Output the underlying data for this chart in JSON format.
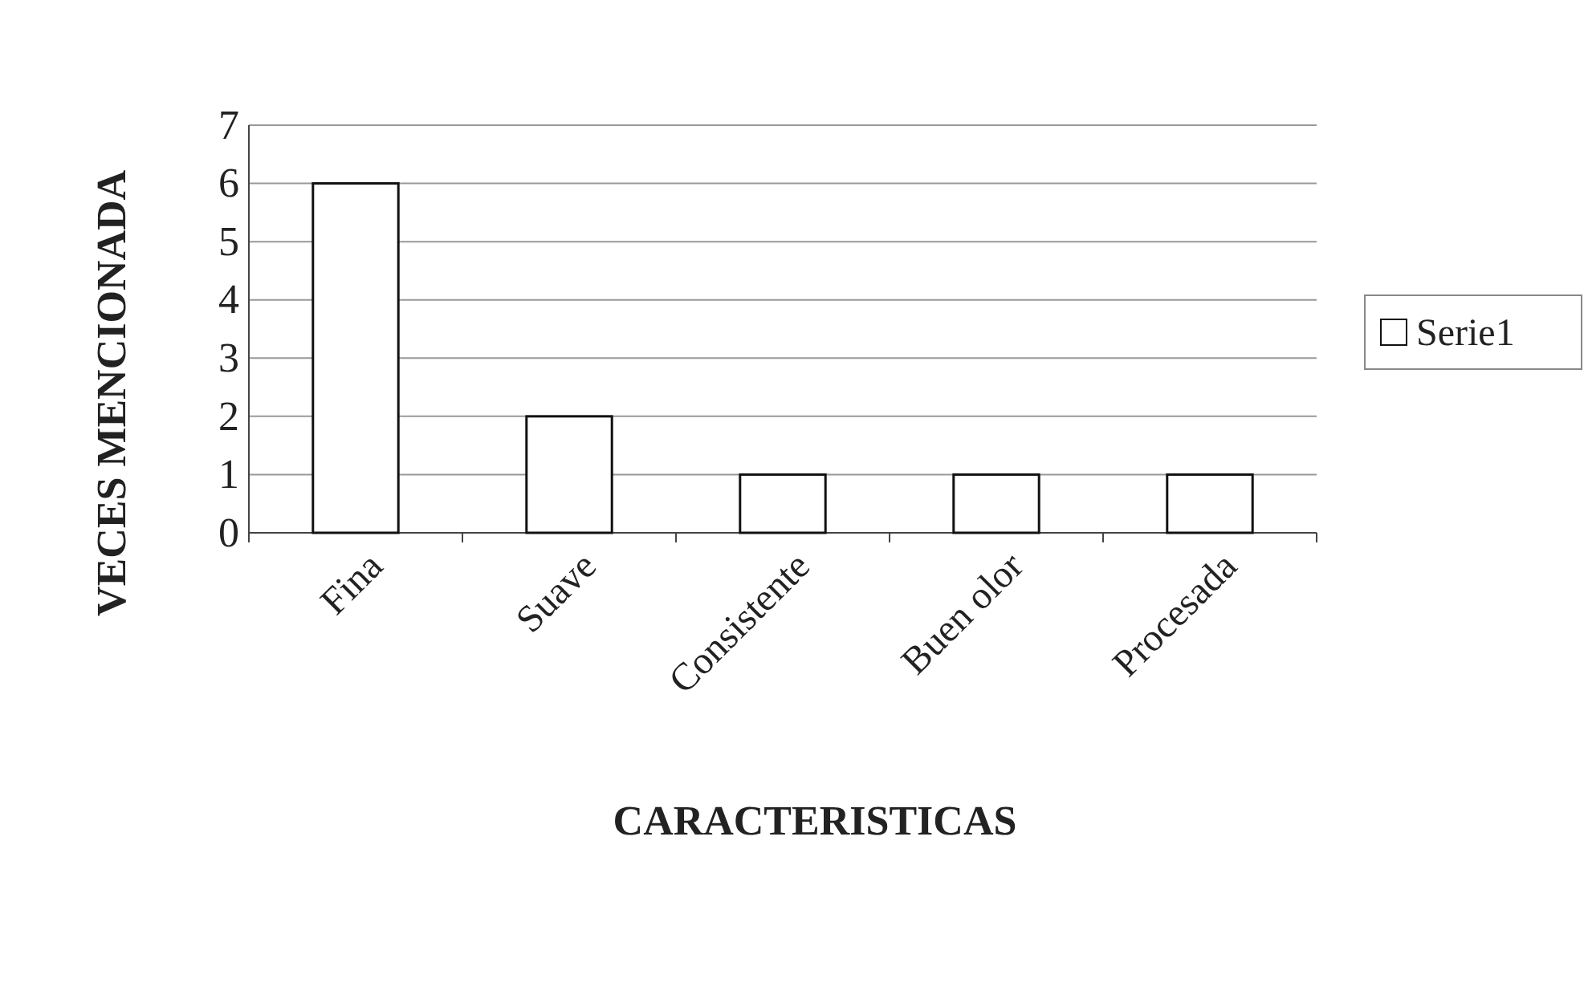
{
  "chart_data": {
    "type": "bar",
    "xlabel": "CARACTERISTICAS",
    "ylabel": "VECES MENCIONADA",
    "categories": [
      "Fina",
      "Suave",
      "Consistente",
      "Buen olor",
      "Procesada"
    ],
    "series": [
      {
        "name": "Serie1",
        "color": "#ffffff",
        "values": [
          6,
          2,
          1,
          1,
          1
        ]
      }
    ],
    "ylim": [
      0,
      7
    ],
    "yticks": [
      0,
      1,
      2,
      3,
      4,
      5,
      6,
      7
    ],
    "grid": "y",
    "legend": "right"
  }
}
